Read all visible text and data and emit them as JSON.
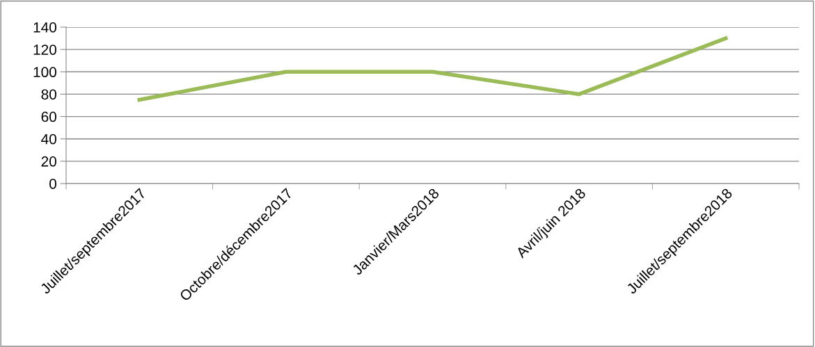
{
  "chart_data": {
    "type": "line",
    "categories": [
      "Juillet/septembre2017",
      "Octobre/décembre2017",
      "Janvier/Mars2018",
      "Avril/juin 2018",
      "Juillet/septembre2018"
    ],
    "series": [
      {
        "color": "#9bbb59",
        "values": [
          75,
          100,
          100,
          80,
          130
        ]
      }
    ],
    "ylim": [
      0,
      140
    ],
    "yticks": [
      0,
      20,
      40,
      60,
      80,
      100,
      120,
      140
    ],
    "grid": "y",
    "marker": "none",
    "line_style": "solid"
  }
}
